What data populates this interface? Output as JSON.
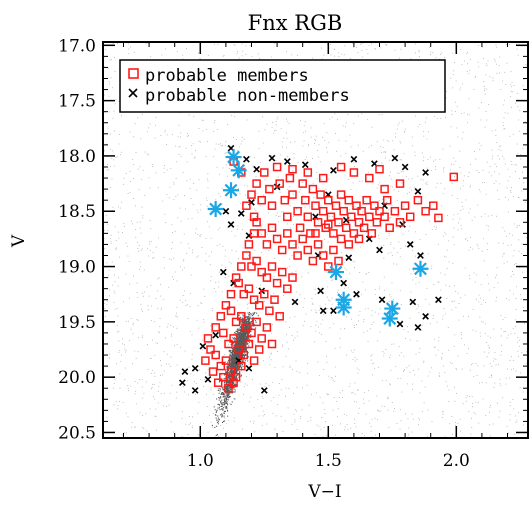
{
  "chart_data": {
    "type": "scatter",
    "title": "Fnx RGB",
    "xlabel": "V−I",
    "ylabel": "V",
    "xlim": [
      0.62,
      2.28
    ],
    "ylim": [
      20.55,
      16.97
    ],
    "y_inverted": true,
    "xticks": [
      {
        "value": 1.0,
        "label": "1.0"
      },
      {
        "value": 1.5,
        "label": "1.5"
      },
      {
        "value": 2.0,
        "label": "2.0"
      }
    ],
    "yticks": [
      {
        "value": 17.0,
        "label": "17.0"
      },
      {
        "value": 17.5,
        "label": "17.5"
      },
      {
        "value": 18.0,
        "label": "18.0"
      },
      {
        "value": 18.5,
        "label": "18.5"
      },
      {
        "value": 19.0,
        "label": "19.0"
      },
      {
        "value": 19.5,
        "label": "19.5"
      },
      {
        "value": 20.0,
        "label": "20.0"
      },
      {
        "value": 20.5,
        "label": "20.5"
      }
    ],
    "legend_position": "top-left",
    "colors": {
      "members": "#ff1a1a",
      "non_members": "#000000",
      "highlighted": "#1aa7e6",
      "background_field": "#8c8c8c"
    },
    "series": [
      {
        "name": "probable members",
        "marker": "open-square",
        "points": [
          [
            1.13,
            18.05
          ],
          [
            1.16,
            18.15
          ],
          [
            1.18,
            18.45
          ],
          [
            1.2,
            18.35
          ],
          [
            1.21,
            18.55
          ],
          [
            1.22,
            18.25
          ],
          [
            1.24,
            18.4
          ],
          [
            1.25,
            18.15
          ],
          [
            1.27,
            18.3
          ],
          [
            1.28,
            18.45
          ],
          [
            1.3,
            18.1
          ],
          [
            1.31,
            18.25
          ],
          [
            1.33,
            18.4
          ],
          [
            1.34,
            18.55
          ],
          [
            1.35,
            18.2
          ],
          [
            1.36,
            18.35
          ],
          [
            1.38,
            18.5
          ],
          [
            1.39,
            18.65
          ],
          [
            1.4,
            18.25
          ],
          [
            1.41,
            18.4
          ],
          [
            1.42,
            18.55
          ],
          [
            1.43,
            18.7
          ],
          [
            1.44,
            18.3
          ],
          [
            1.45,
            18.45
          ],
          [
            1.46,
            18.6
          ],
          [
            1.47,
            18.35
          ],
          [
            1.48,
            18.5
          ],
          [
            1.49,
            18.65
          ],
          [
            1.5,
            18.4
          ],
          [
            1.51,
            18.55
          ],
          [
            1.52,
            18.7
          ],
          [
            1.53,
            18.45
          ],
          [
            1.54,
            18.6
          ],
          [
            1.55,
            18.35
          ],
          [
            1.56,
            18.5
          ],
          [
            1.57,
            18.65
          ],
          [
            1.58,
            18.4
          ],
          [
            1.59,
            18.55
          ],
          [
            1.6,
            18.7
          ],
          [
            1.61,
            18.45
          ],
          [
            1.62,
            18.6
          ],
          [
            1.63,
            18.5
          ],
          [
            1.64,
            18.65
          ],
          [
            1.65,
            18.4
          ],
          [
            1.66,
            18.55
          ],
          [
            1.67,
            18.7
          ],
          [
            1.68,
            18.45
          ],
          [
            1.69,
            18.6
          ],
          [
            1.7,
            18.5
          ],
          [
            1.72,
            18.55
          ],
          [
            1.73,
            18.4
          ],
          [
            1.74,
            18.65
          ],
          [
            1.76,
            18.5
          ],
          [
            1.78,
            18.6
          ],
          [
            1.8,
            18.45
          ],
          [
            1.82,
            18.55
          ],
          [
            1.85,
            18.4
          ],
          [
            1.88,
            18.5
          ],
          [
            1.91,
            18.45
          ],
          [
            1.93,
            18.56
          ],
          [
            1.99,
            18.19
          ],
          [
            1.78,
            18.25
          ],
          [
            1.72,
            18.3
          ],
          [
            1.66,
            18.2
          ],
          [
            1.6,
            18.15
          ],
          [
            1.55,
            18.1
          ],
          [
            1.48,
            18.2
          ],
          [
            1.42,
            18.15
          ],
          [
            1.36,
            18.12
          ],
          [
            1.7,
            18.12
          ],
          [
            1.22,
            18.6
          ],
          [
            1.24,
            18.7
          ],
          [
            1.26,
            18.8
          ],
          [
            1.28,
            18.65
          ],
          [
            1.3,
            18.75
          ],
          [
            1.32,
            18.85
          ],
          [
            1.34,
            18.7
          ],
          [
            1.36,
            18.8
          ],
          [
            1.38,
            18.9
          ],
          [
            1.4,
            18.75
          ],
          [
            1.42,
            18.85
          ],
          [
            1.44,
            18.95
          ],
          [
            1.46,
            18.8
          ],
          [
            1.48,
            18.9
          ],
          [
            1.5,
            19.0
          ],
          [
            1.52,
            18.85
          ],
          [
            1.54,
            18.95
          ],
          [
            1.18,
            18.9
          ],
          [
            1.2,
            19.0
          ],
          [
            1.22,
            18.95
          ],
          [
            1.24,
            19.05
          ],
          [
            1.26,
            19.1
          ],
          [
            1.28,
            19.0
          ],
          [
            1.3,
            19.15
          ],
          [
            1.32,
            19.05
          ],
          [
            1.34,
            19.2
          ],
          [
            1.36,
            19.1
          ],
          [
            1.15,
            19.15
          ],
          [
            1.17,
            19.25
          ],
          [
            1.19,
            19.2
          ],
          [
            1.21,
            19.3
          ],
          [
            1.23,
            19.35
          ],
          [
            1.25,
            19.25
          ],
          [
            1.27,
            19.4
          ],
          [
            1.29,
            19.3
          ],
          [
            1.31,
            19.45
          ],
          [
            1.12,
            19.4
          ],
          [
            1.14,
            19.5
          ],
          [
            1.16,
            19.45
          ],
          [
            1.18,
            19.55
          ],
          [
            1.2,
            19.6
          ],
          [
            1.22,
            19.5
          ],
          [
            1.24,
            19.65
          ],
          [
            1.26,
            19.55
          ],
          [
            1.28,
            19.7
          ],
          [
            1.09,
            19.6
          ],
          [
            1.11,
            19.7
          ],
          [
            1.13,
            19.65
          ],
          [
            1.15,
            19.75
          ],
          [
            1.17,
            19.8
          ],
          [
            1.19,
            19.7
          ],
          [
            1.21,
            19.85
          ],
          [
            1.23,
            19.75
          ],
          [
            1.06,
            19.8
          ],
          [
            1.08,
            19.9
          ],
          [
            1.1,
            19.85
          ],
          [
            1.12,
            19.95
          ],
          [
            1.14,
            20.0
          ],
          [
            1.16,
            19.9
          ],
          [
            1.05,
            19.95
          ],
          [
            1.07,
            20.05
          ],
          [
            1.09,
            20.0
          ],
          [
            1.11,
            20.1
          ],
          [
            1.13,
            20.05
          ],
          [
            1.02,
            19.85
          ],
          [
            1.04,
            19.75
          ],
          [
            1.03,
            19.65
          ],
          [
            1.06,
            19.55
          ],
          [
            1.08,
            19.45
          ],
          [
            1.1,
            19.35
          ],
          [
            1.12,
            19.25
          ],
          [
            1.14,
            19.1
          ],
          [
            1.16,
            19.0
          ],
          [
            1.19,
            18.8
          ],
          [
            1.21,
            18.7
          ],
          [
            1.55,
            18.75
          ],
          [
            1.58,
            18.8
          ],
          [
            1.62,
            18.75
          ],
          [
            1.45,
            18.7
          ],
          [
            1.5,
            18.62
          ]
        ]
      },
      {
        "name": "probable non-members",
        "marker": "x",
        "points": [
          [
            1.12,
            17.93
          ],
          [
            1.18,
            18.03
          ],
          [
            1.22,
            18.12
          ],
          [
            1.28,
            18.02
          ],
          [
            1.34,
            18.05
          ],
          [
            1.41,
            18.08
          ],
          [
            1.52,
            18.13
          ],
          [
            1.6,
            18.03
          ],
          [
            1.68,
            18.07
          ],
          [
            1.76,
            18.02
          ],
          [
            1.8,
            18.1
          ],
          [
            1.88,
            18.15
          ],
          [
            1.1,
            18.5
          ],
          [
            1.12,
            18.62
          ],
          [
            1.16,
            18.52
          ],
          [
            1.2,
            18.42
          ],
          [
            1.19,
            18.72
          ],
          [
            1.46,
            18.9
          ],
          [
            1.58,
            18.92
          ],
          [
            1.7,
            18.85
          ],
          [
            1.82,
            18.8
          ],
          [
            1.86,
            18.9
          ],
          [
            1.66,
            18.75
          ],
          [
            1.79,
            18.62
          ],
          [
            1.85,
            18.32
          ],
          [
            1.09,
            19.05
          ],
          [
            1.13,
            19.15
          ],
          [
            1.24,
            19.22
          ],
          [
            1.37,
            19.32
          ],
          [
            1.47,
            19.22
          ],
          [
            1.52,
            19.4
          ],
          [
            1.56,
            19.15
          ],
          [
            1.61,
            19.25
          ],
          [
            1.71,
            19.3
          ],
          [
            1.83,
            19.32
          ],
          [
            1.88,
            19.45
          ],
          [
            1.93,
            19.3
          ],
          [
            1.85,
            19.55
          ],
          [
            1.78,
            19.52
          ],
          [
            1.06,
            19.62
          ],
          [
            1.01,
            19.72
          ],
          [
            0.98,
            19.92
          ],
          [
            0.94,
            19.95
          ],
          [
            0.93,
            20.05
          ],
          [
            0.98,
            20.12
          ],
          [
            1.03,
            20.02
          ],
          [
            1.15,
            19.85
          ],
          [
            1.19,
            19.92
          ],
          [
            1.25,
            20.12
          ],
          [
            1.48,
            19.4
          ],
          [
            1.5,
            18.35
          ],
          [
            1.72,
            18.45
          ],
          [
            1.45,
            18.55
          ],
          [
            1.3,
            18.28
          ],
          [
            1.57,
            18.58
          ]
        ]
      },
      {
        "name": "",
        "marker": "asterisk",
        "points": [
          [
            1.13,
            18.01
          ],
          [
            1.15,
            18.13
          ],
          [
            1.12,
            18.31
          ],
          [
            1.06,
            18.48
          ],
          [
            1.53,
            19.05
          ],
          [
            1.56,
            19.3
          ],
          [
            1.56,
            19.37
          ],
          [
            1.75,
            19.38
          ],
          [
            1.74,
            19.47
          ],
          [
            1.86,
            19.02
          ]
        ]
      }
    ]
  }
}
